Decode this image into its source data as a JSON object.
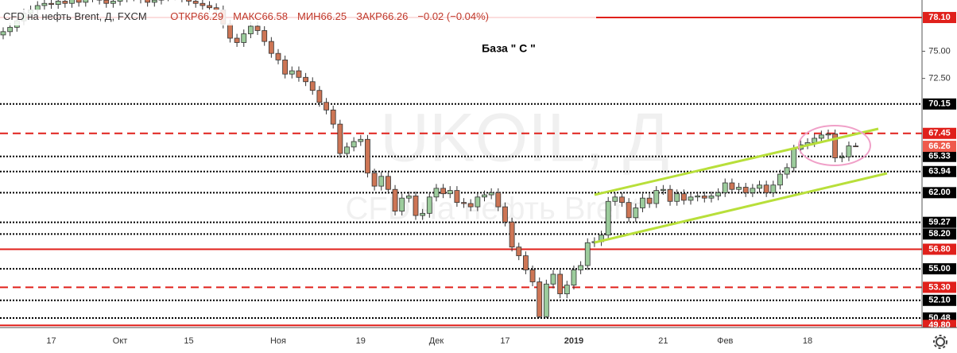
{
  "chart_data": {
    "type": "candlestick",
    "title": "CFD на нефть Brent, Д, FXCM",
    "header_values": [
      "ОТКР66.29",
      "МАКС66.58",
      "МИН66.25",
      "ЗАКР66.26",
      "−0.02 (−0.04%)"
    ],
    "annotation": "База  \" С \"",
    "watermark": [
      "UKOIL, Д",
      "CFD на нефть Brent"
    ],
    "up_color": "#9ccc9c",
    "down_color": "#cd7555",
    "ylim": [
      49.6,
      79.71
    ],
    "yticks": [
      {
        "value": 75,
        "label": "75.00"
      },
      {
        "value": 72.5,
        "label": "72.50"
      }
    ],
    "categories": [
      null,
      null,
      null,
      null,
      null,
      null,
      null,
      "17",
      null,
      null,
      null,
      null,
      null,
      null,
      null,
      null,
      null,
      "Окт",
      null,
      null,
      null,
      null,
      null,
      null,
      null,
      null,
      null,
      "15",
      null,
      null,
      null,
      null,
      null,
      null,
      null,
      null,
      null,
      null,
      null,
      null,
      "Ноя",
      null,
      null,
      null,
      null,
      null,
      null,
      null,
      null,
      null,
      null,
      null,
      "19",
      null,
      null,
      null,
      null,
      null,
      null,
      null,
      null,
      null,
      null,
      "Дек",
      null,
      null,
      null,
      null,
      null,
      null,
      null,
      null,
      null,
      "17",
      null,
      null,
      null,
      null,
      null,
      null,
      null,
      null,
      null,
      "2019",
      null,
      null,
      null,
      null,
      null,
      null,
      null,
      null,
      null,
      null,
      null,
      null,
      "21",
      null,
      null,
      null,
      null,
      null,
      null,
      null,
      null,
      "Фев",
      null,
      null,
      null,
      null,
      null,
      null,
      null,
      null,
      null,
      null,
      null,
      "18",
      null,
      null,
      null,
      null,
      null,
      null,
      null
    ],
    "open": [
      76.5,
      76.8,
      77.2,
      77.8,
      78.5,
      78.8,
      79.2,
      79.4,
      79.3,
      79.6,
      79.4,
      79.8,
      79.5,
      79.9,
      80.1,
      79.7,
      79.4,
      79.6,
      79.9,
      80.2,
      80.0,
      79.8,
      79.5,
      79.7,
      80.0,
      80.3,
      80.1,
      79.9,
      79.6,
      79.4,
      79.2,
      79.0,
      78.8,
      77.5,
      76.2,
      75.8,
      76.6,
      77.3,
      76.9,
      75.9,
      74.8,
      74.2,
      72.9,
      73.2,
      72.6,
      72.2,
      71.4,
      70.3,
      69.6,
      68.3,
      65.6,
      66.2,
      66.7,
      66.9,
      63.8,
      62.6,
      63.5,
      62.3,
      60.3,
      61.5,
      61.7,
      59.9,
      60.1,
      61.6,
      62.4,
      61.9,
      62.2,
      61.1,
      61.0,
      60.7,
      61.6,
      61.8,
      62.0,
      60.7,
      59.3,
      57.0,
      56.2,
      54.9,
      53.8,
      50.6,
      53.6,
      54.5,
      52.7,
      53.5,
      54.9,
      55.3,
      57.4,
      57.5,
      58.1,
      61.2,
      61.6,
      61.1,
      59.7,
      60.6,
      61.5,
      61.0,
      62.2,
      62.3,
      61.2,
      61.9,
      61.3,
      61.6,
      61.7,
      61.5,
      61.7,
      62.0,
      62.9,
      62.3,
      62.5,
      62.0,
      62.4,
      62.7,
      62.0,
      62.7,
      63.7,
      64.3,
      66.0,
      66.4,
      66.6,
      67.0,
      67.3,
      67.4,
      65.2,
      65.3,
      66.29
    ],
    "high": [
      77.2,
      77.6,
      78.2,
      78.9,
      79.2,
      79.6,
      79.8,
      79.8,
      80.0,
      80.0,
      80.2,
      80.2,
      80.3,
      80.5,
      80.5,
      80.1,
      80.0,
      80.3,
      80.6,
      80.6,
      80.4,
      80.2,
      80.1,
      80.4,
      80.7,
      80.7,
      80.5,
      80.3,
      80.0,
      79.8,
      79.6,
      79.4,
      79.2,
      77.9,
      76.6,
      77.0,
      77.7,
      77.7,
      77.3,
      76.3,
      75.2,
      74.6,
      73.6,
      73.6,
      73.0,
      72.6,
      71.8,
      70.7,
      70.0,
      68.7,
      66.6,
      67.1,
      67.3,
      67.3,
      64.2,
      63.9,
      63.9,
      62.7,
      61.9,
      62.1,
      62.1,
      60.5,
      62.0,
      62.8,
      62.8,
      62.6,
      62.6,
      61.5,
      61.4,
      62.0,
      62.2,
      62.4,
      62.4,
      61.1,
      59.7,
      57.4,
      56.6,
      55.3,
      54.2,
      54.0,
      54.9,
      54.9,
      53.9,
      55.3,
      55.7,
      57.8,
      57.9,
      58.5,
      61.6,
      62.0,
      62.0,
      61.5,
      61.0,
      61.9,
      61.9,
      62.6,
      62.7,
      62.7,
      62.3,
      62.3,
      62.0,
      62.1,
      62.1,
      62.1,
      62.4,
      63.3,
      63.3,
      62.9,
      62.9,
      62.8,
      63.1,
      63.1,
      63.1,
      64.1,
      64.7,
      66.4,
      66.8,
      67.0,
      67.4,
      67.7,
      67.8,
      67.8,
      65.7,
      66.7,
      66.58
    ],
    "low": [
      76.1,
      76.4,
      76.8,
      77.4,
      78.1,
      78.4,
      78.8,
      78.9,
      78.9,
      79.0,
      79.0,
      79.1,
      79.1,
      79.5,
      79.3,
      79.0,
      79.0,
      79.2,
      79.5,
      79.6,
      79.4,
      79.1,
      79.1,
      79.3,
      79.6,
      79.7,
      79.5,
      79.2,
      79.0,
      78.8,
      78.6,
      78.4,
      77.1,
      75.8,
      75.4,
      75.4,
      76.2,
      76.5,
      75.5,
      74.4,
      73.8,
      72.5,
      72.5,
      72.2,
      71.8,
      71.0,
      69.9,
      69.2,
      67.9,
      65.2,
      65.2,
      65.8,
      66.3,
      63.4,
      62.2,
      62.2,
      61.9,
      59.9,
      59.9,
      61.1,
      59.5,
      59.5,
      59.7,
      61.2,
      61.5,
      61.5,
      60.7,
      60.6,
      60.3,
      60.3,
      61.2,
      61.4,
      60.3,
      58.9,
      56.6,
      55.8,
      54.5,
      53.4,
      50.48,
      50.5,
      53.2,
      52.3,
      52.3,
      53.1,
      54.5,
      54.9,
      57.0,
      57.1,
      57.7,
      60.8,
      60.7,
      59.3,
      59.3,
      60.2,
      60.6,
      60.6,
      61.8,
      60.8,
      60.8,
      60.9,
      60.9,
      61.2,
      61.1,
      61.1,
      61.3,
      61.6,
      61.9,
      61.9,
      61.6,
      61.6,
      62.0,
      61.6,
      61.6,
      62.3,
      63.3,
      63.9,
      65.6,
      66.0,
      66.2,
      66.6,
      66.9,
      64.8,
      64.8,
      64.9,
      66.25
    ],
    "close": [
      76.8,
      77.2,
      77.8,
      78.5,
      78.8,
      79.2,
      79.4,
      79.3,
      79.6,
      79.4,
      79.8,
      79.5,
      79.9,
      80.1,
      79.7,
      79.4,
      79.6,
      79.9,
      80.2,
      80.0,
      79.8,
      79.5,
      79.7,
      80.0,
      80.3,
      80.1,
      79.9,
      79.6,
      79.4,
      79.2,
      79.0,
      78.8,
      77.5,
      76.2,
      75.8,
      76.6,
      77.3,
      76.9,
      75.9,
      74.8,
      74.2,
      72.9,
      73.2,
      72.6,
      72.2,
      71.4,
      70.3,
      69.6,
      68.3,
      65.6,
      66.2,
      66.7,
      66.9,
      63.8,
      62.6,
      63.5,
      62.3,
      60.3,
      61.5,
      61.7,
      59.9,
      60.1,
      61.6,
      62.4,
      61.9,
      62.2,
      61.1,
      61.0,
      60.7,
      61.6,
      61.8,
      62.0,
      60.7,
      59.3,
      57.0,
      56.2,
      54.9,
      53.8,
      50.6,
      53.6,
      54.5,
      52.7,
      53.5,
      54.9,
      55.3,
      57.4,
      57.5,
      58.1,
      61.2,
      61.6,
      61.1,
      59.7,
      60.6,
      61.5,
      61.0,
      62.2,
      62.3,
      61.2,
      61.9,
      61.3,
      61.6,
      61.7,
      61.5,
      61.7,
      62.0,
      62.9,
      62.3,
      62.5,
      62.0,
      62.4,
      62.7,
      62.0,
      62.7,
      63.7,
      64.3,
      66.0,
      66.4,
      66.6,
      67.0,
      67.3,
      67.4,
      65.2,
      65.3,
      66.3,
      66.26
    ],
    "levels": [
      {
        "value": 78.1,
        "label": "78.10",
        "style": "solid",
        "color": "#e0201b"
      },
      {
        "value": 70.15,
        "label": "70.15",
        "style": "dotted",
        "color": "#000000"
      },
      {
        "value": 67.45,
        "label": "67.45",
        "style": "dashed",
        "color": "#e0201b"
      },
      {
        "value": 65.33,
        "label": "65.33",
        "style": "dotted",
        "color": "#000000"
      },
      {
        "value": 63.94,
        "label": "63.94",
        "style": "dotted",
        "color": "#000000"
      },
      {
        "value": 62,
        "label": "62.00",
        "style": "dotted",
        "color": "#000000"
      },
      {
        "value": 59.27,
        "label": "59.27",
        "style": "dotted",
        "color": "#000000"
      },
      {
        "value": 58.2,
        "label": "58.20",
        "style": "dotted",
        "color": "#000000"
      },
      {
        "value": 56.8,
        "label": "56.80",
        "style": "solid",
        "color": "#e0201b"
      },
      {
        "value": 55,
        "label": "55.00",
        "style": "dotted",
        "color": "#000000"
      },
      {
        "value": 53.3,
        "label": "53.30",
        "style": "dashed",
        "color": "#e0201b"
      },
      {
        "value": 52.1,
        "label": "52.10",
        "style": "dotted",
        "color": "#000000"
      },
      {
        "value": 50.48,
        "label": "50.48",
        "style": "dotted",
        "color": "#000000"
      },
      {
        "value": 49.8,
        "label": "49.80",
        "style": "solid",
        "color": "#e0201b"
      }
    ],
    "last_price": {
      "value": 66.26,
      "label": "66.26",
      "color": "#ef5a4c"
    }
  }
}
